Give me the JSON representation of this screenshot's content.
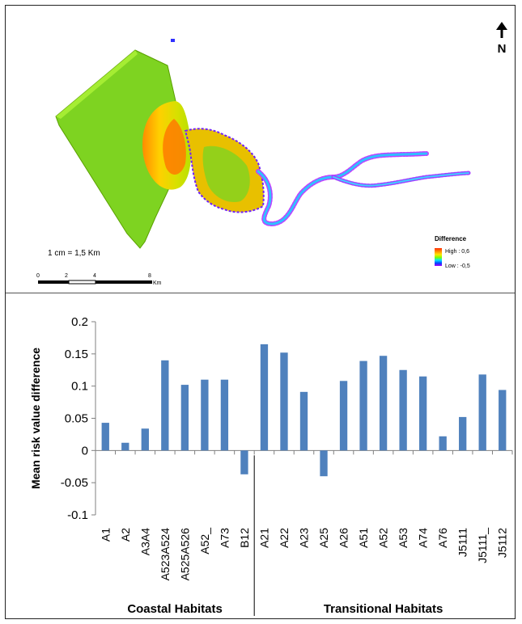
{
  "map": {
    "north_letter": "N",
    "scale_text": "1 cm = 1,5 Km",
    "scalebar_ticks": [
      "0",
      "2",
      "4",
      "8"
    ],
    "scalebar_unit": "Km",
    "legend_title": "Difference",
    "legend_high": "High : 0,6",
    "legend_low": "Low : -0,5",
    "legend_colors": [
      "#ff2a00",
      "#ff8c00",
      "#ffe600",
      "#7fff00",
      "#00e5ff",
      "#0044ff",
      "#a000ff"
    ]
  },
  "chart_data": {
    "type": "bar",
    "ylabel": "Mean risk value difference",
    "ylim": [
      -0.1,
      0.2
    ],
    "yticks": [
      -0.1,
      -0.05,
      0,
      0.05,
      0.1,
      0.15,
      0.2
    ],
    "ytick_labels": [
      "-0.1",
      "-0.05",
      "0",
      "0.05",
      "0.1",
      "0.15",
      "0.2"
    ],
    "grid": false,
    "bar_color": "#4f81bd",
    "categories": [
      "A1",
      "A2",
      "A3A4",
      "A523A524",
      "A525A526",
      "A52_",
      "A73",
      "B12",
      "A21",
      "A22",
      "A23",
      "A25",
      "A26",
      "A51",
      "A52",
      "A53",
      "A74",
      "A76",
      "J5111",
      "J5111_",
      "J5112"
    ],
    "values": [
      0.043,
      0.012,
      0.034,
      0.14,
      0.102,
      0.11,
      0.11,
      -0.037,
      0.165,
      0.152,
      0.091,
      -0.04,
      0.108,
      0.139,
      0.147,
      0.125,
      0.115,
      0.022,
      0.052,
      0.118,
      0.094
    ],
    "groups": [
      {
        "label": "Coastal Habitats",
        "count": 8
      },
      {
        "label": "Transitional  Habitats",
        "count": 13
      }
    ]
  }
}
